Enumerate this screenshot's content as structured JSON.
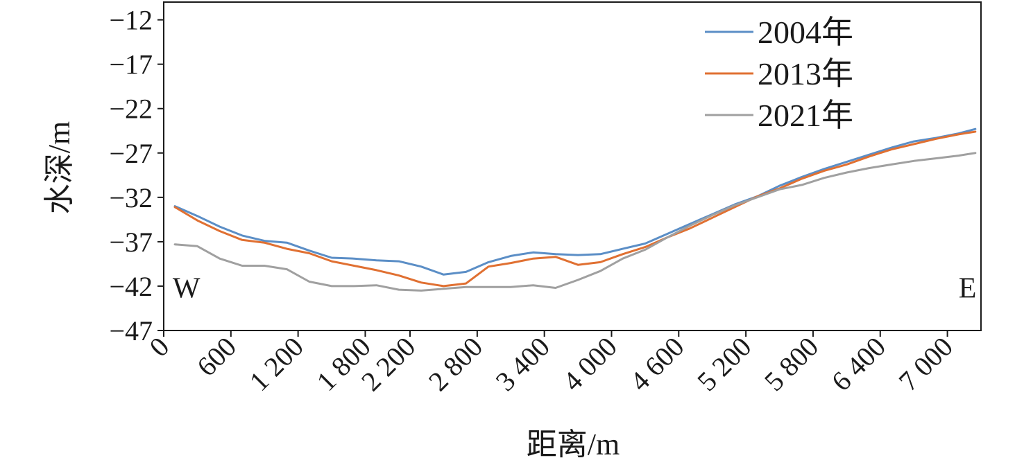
{
  "chart_data": {
    "type": "line",
    "xlabel": "距离/m",
    "ylabel": "水深/m",
    "xlim": [
      0,
      7300
    ],
    "ylim": [
      -47,
      -10
    ],
    "x_ticks": [
      0,
      600,
      1200,
      1800,
      2200,
      2800,
      3400,
      4000,
      4600,
      5200,
      5800,
      6400,
      7000
    ],
    "x_tick_labels": [
      "0",
      "600",
      "1 200",
      "1 800",
      "2 200",
      "2 800",
      "3 400",
      "4 000",
      "4 600",
      "5 200",
      "5 800",
      "6 400",
      "7 000"
    ],
    "y_ticks": [
      -12,
      -17,
      -22,
      -27,
      -32,
      -37,
      -42,
      -47
    ],
    "y_tick_labels": [
      "−12",
      "−17",
      "−22",
      "−27",
      "−32",
      "−37",
      "−42",
      "−47"
    ],
    "grid": false,
    "legend_position": "top-right",
    "annotations": [
      {
        "text": "W",
        "x": 80,
        "y": -43.3
      },
      {
        "text": "E",
        "x": 7100,
        "y": -43.3
      }
    ],
    "x": [
      100,
      300,
      500,
      700,
      900,
      1100,
      1300,
      1500,
      1700,
      1900,
      2100,
      2300,
      2500,
      2700,
      2900,
      3100,
      3300,
      3500,
      3700,
      3900,
      4100,
      4300,
      4500,
      4700,
      4900,
      5100,
      5300,
      5500,
      5700,
      5900,
      6100,
      6300,
      6500,
      6700,
      6900,
      7100,
      7250
    ],
    "series": [
      {
        "name": "2004年",
        "color": "#5b8ec6",
        "values": [
          -33.0,
          -34.1,
          -35.3,
          -36.3,
          -36.9,
          -37.1,
          -38.0,
          -38.8,
          -38.9,
          -39.1,
          -39.2,
          -39.8,
          -40.7,
          -40.4,
          -39.3,
          -38.6,
          -38.2,
          -38.4,
          -38.5,
          -38.4,
          -37.8,
          -37.2,
          -36.1,
          -35.0,
          -33.9,
          -32.8,
          -31.9,
          -30.7,
          -29.7,
          -28.8,
          -28.0,
          -27.2,
          -26.4,
          -25.7,
          -25.3,
          -24.8,
          -24.3
        ]
      },
      {
        "name": "2013年",
        "color": "#e07032",
        "values": [
          -33.1,
          -34.6,
          -35.8,
          -36.8,
          -37.1,
          -37.8,
          -38.3,
          -39.2,
          -39.7,
          -40.2,
          -40.8,
          -41.6,
          -42.0,
          -41.7,
          -39.8,
          -39.4,
          -38.9,
          -38.7,
          -39.6,
          -39.3,
          -38.4,
          -37.6,
          -36.5,
          -35.5,
          -34.3,
          -33.1,
          -31.9,
          -31.0,
          -29.9,
          -29.0,
          -28.3,
          -27.4,
          -26.6,
          -26.0,
          -25.4,
          -24.9,
          -24.6
        ]
      },
      {
        "name": "2021年",
        "color": "#a0a0a0",
        "values": [
          -37.3,
          -37.5,
          -38.9,
          -39.7,
          -39.7,
          -40.1,
          -41.5,
          -42.0,
          -42.0,
          -41.9,
          -42.4,
          -42.5,
          -42.3,
          -42.1,
          -42.1,
          -42.1,
          -41.9,
          -42.2,
          -41.3,
          -40.3,
          -38.9,
          -37.9,
          -36.5,
          -35.2,
          -34.0,
          -32.9,
          -32.0,
          -31.1,
          -30.6,
          -29.8,
          -29.2,
          -28.7,
          -28.3,
          -27.9,
          -27.6,
          -27.3,
          -27.0
        ]
      }
    ]
  }
}
